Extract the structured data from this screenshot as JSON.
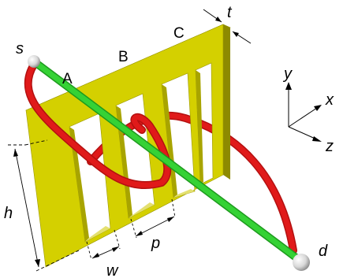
{
  "labels": {
    "s": "s",
    "d": "d",
    "A": "A",
    "B": "B",
    "C": "C",
    "t": "t",
    "h": "h",
    "w": "w",
    "p": "p"
  },
  "axes": {
    "x": "x",
    "y": "y",
    "z": "z"
  },
  "colors": {
    "frame_front": "#d4d000",
    "frame_side": "#8d8a00",
    "frame_top": "#e9e54a",
    "frame_inner": "#b5b100",
    "red_curve": "#e01a1a",
    "green_line": "#35d235",
    "endpoint": "#d8d8d8"
  }
}
